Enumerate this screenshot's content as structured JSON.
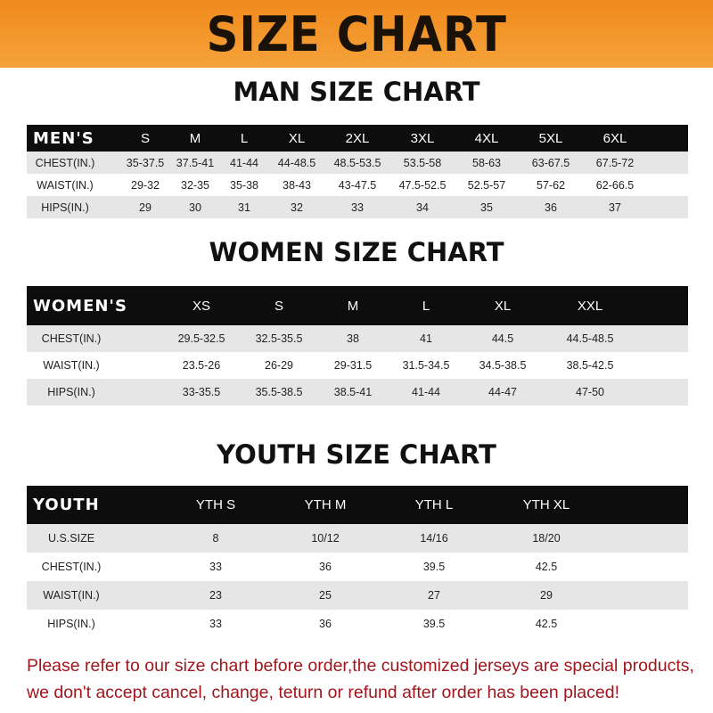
{
  "banner_title": "SIZE CHART",
  "colors": {
    "banner": "#f08a1c",
    "header_row": "#0d0d0d",
    "note_text": "#a0161c"
  },
  "men": {
    "title": "MAN SIZE CHART",
    "header_label": "MEN'S",
    "sizes": [
      "S",
      "M",
      "L",
      "XL",
      "2XL",
      "3XL",
      "4XL",
      "5XL",
      "6XL"
    ],
    "rows": [
      {
        "label": "CHEST(IN.)",
        "values": [
          "35-37.5",
          "37.5-41",
          "41-44",
          "44-48.5",
          "48.5-53.5",
          "53.5-58",
          "58-63",
          "63-67.5",
          "67.5-72"
        ]
      },
      {
        "label": "WAIST(IN.)",
        "values": [
          "29-32",
          "32-35",
          "35-38",
          "38-43",
          "43-47.5",
          "47.5-52.5",
          "52.5-57",
          "57-62",
          "62-66.5"
        ]
      },
      {
        "label": "HIPS(IN.)",
        "values": [
          "29",
          "30",
          "31",
          "32",
          "33",
          "34",
          "35",
          "36",
          "37"
        ]
      }
    ]
  },
  "women": {
    "title": "WOMEN SIZE CHART",
    "header_label": "WOMEN'S",
    "sizes": [
      "XS",
      "S",
      "M",
      "L",
      "XL",
      "XXL"
    ],
    "rows": [
      {
        "label": "CHEST(IN.)",
        "values": [
          "29.5-32.5",
          "32.5-35.5",
          "38",
          "41",
          "44.5",
          "44.5-48.5"
        ]
      },
      {
        "label": "WAIST(IN.)",
        "values": [
          "23.5-26",
          "26-29",
          "29-31.5",
          "31.5-34.5",
          "34.5-38.5",
          "38.5-42.5"
        ]
      },
      {
        "label": "HIPS(IN.)",
        "values": [
          "33-35.5",
          "35.5-38.5",
          "38.5-41",
          "41-44",
          "44-47",
          "47-50"
        ]
      }
    ]
  },
  "youth": {
    "title": "YOUTH SIZE CHART",
    "header_label": "YOUTH",
    "sizes": [
      "YTH S",
      "YTH M",
      "YTH L",
      "YTH XL"
    ],
    "rows": [
      {
        "label": "U.S.SIZE",
        "values": [
          "8",
          "10/12",
          "14/16",
          "18/20"
        ]
      },
      {
        "label": "CHEST(IN.)",
        "values": [
          "33",
          "36",
          "39.5",
          "42.5"
        ]
      },
      {
        "label": "WAIST(IN.)",
        "values": [
          "23",
          "25",
          "27",
          "29"
        ]
      },
      {
        "label": "HIPS(IN.)",
        "values": [
          "33",
          "36",
          "39.5",
          "42.5"
        ]
      }
    ]
  },
  "note": "Please refer to our size chart before order,the customized jerseys are special products, we don't accept cancel, change, teturn or refund after order has been placed!"
}
